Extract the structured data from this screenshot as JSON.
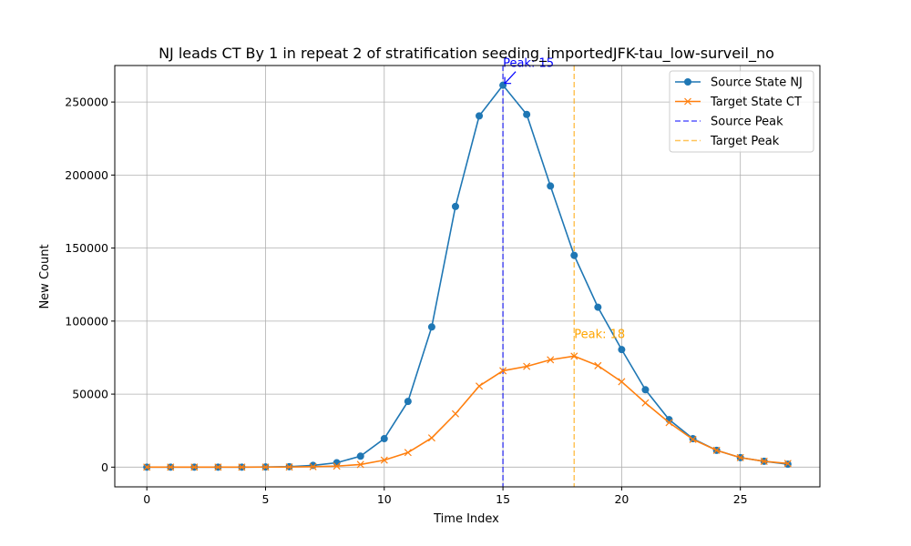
{
  "chart_data": {
    "type": "line",
    "title": "NJ leads CT By 1 in repeat 2 of stratification seeding_importedJFK-tau_low-surveil_no",
    "xlabel": "Time Index",
    "ylabel": "New Count",
    "xlim": [
      -1.35,
      28.35
    ],
    "ylim": [
      -13500,
      275000
    ],
    "x_ticks": [
      0,
      5,
      10,
      15,
      20,
      25
    ],
    "y_ticks": [
      0,
      50000,
      100000,
      150000,
      200000,
      250000
    ],
    "grid": true,
    "legend_position": "top-right",
    "x": [
      0,
      1,
      2,
      3,
      4,
      5,
      6,
      7,
      8,
      9,
      10,
      11,
      12,
      13,
      14,
      15,
      16,
      17,
      18,
      19,
      20,
      21,
      22,
      23,
      24,
      25,
      26,
      27
    ],
    "series": [
      {
        "name": "Source State NJ",
        "color": "#1f77b4",
        "marker": "circle",
        "values": [
          0,
          0,
          0,
          0,
          0,
          100,
          300,
          1200,
          3000,
          7500,
          19500,
          45000,
          96000,
          178500,
          240500,
          261500,
          241500,
          192500,
          145000,
          109500,
          80500,
          53000,
          32500,
          19500,
          11500,
          6500,
          4000,
          2000
        ]
      },
      {
        "name": "Target State CT",
        "color": "#ff7f0e",
        "marker": "x",
        "values": [
          0,
          0,
          0,
          0,
          0,
          50,
          100,
          300,
          700,
          1800,
          4800,
          10000,
          20000,
          36500,
          55500,
          66000,
          69000,
          73500,
          76000,
          69500,
          58500,
          44000,
          30500,
          19000,
          11500,
          6500,
          4000,
          2500
        ]
      }
    ],
    "reference_lines": [
      {
        "name": "Source Peak",
        "x": 15,
        "color": "#0000ff",
        "style": "dashed"
      },
      {
        "name": "Target Peak",
        "x": 18,
        "color": "#ffa500",
        "style": "dashed"
      }
    ],
    "annotations": [
      {
        "text": "Peak: 15",
        "x": 15,
        "y": 261500,
        "color": "#0000ff",
        "arrow": true
      },
      {
        "text": "Peak: 18",
        "x": 18,
        "y": 76000,
        "color": "#ffa500",
        "arrow": false
      }
    ]
  }
}
